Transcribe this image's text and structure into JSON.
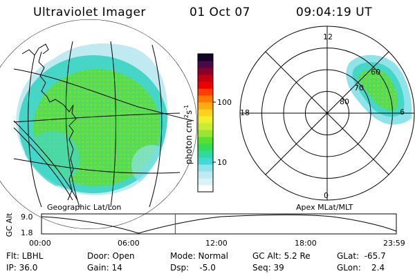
{
  "header": {
    "title": "Ultraviolet Imager",
    "date": "01 Oct 07",
    "time": "09:04:19 UT"
  },
  "left_panel": {
    "caption": "Geographic Lat/Lon"
  },
  "right_panel": {
    "caption": "Apex MLat/MLT",
    "mlt_labels": {
      "top": "12",
      "left": "18",
      "right": "6",
      "bottom": "0"
    },
    "lat_labels": [
      "60",
      "70",
      "80"
    ]
  },
  "colorbar": {
    "axis_label": "photon cm",
    "axis_label_exp1": "-2",
    "axis_label_s": "s",
    "axis_label_exp2": "-1",
    "tick_labels": [
      "100",
      "10"
    ],
    "colors": [
      "#ffffff",
      "#d9f2f7",
      "#bfeaf2",
      "#8fe3ea",
      "#45d6d6",
      "#2fd99f",
      "#33dd55",
      "#55e033",
      "#99e633",
      "#c8ee33",
      "#eef02e",
      "#ffd21f",
      "#ffaa10",
      "#ff7a00",
      "#ff3d00",
      "#ee0000",
      "#c00010",
      "#8a0028",
      "#4a0a4a",
      "#140528"
    ]
  },
  "altitude_plot": {
    "y_axis_label": "GC Alt",
    "y_ticks": [
      "9.0",
      "1.8"
    ],
    "x_ticks": [
      "00:00",
      "06:00",
      "12:00",
      "18:00",
      "23:59"
    ],
    "current_time_fraction": 0.377
  },
  "info": {
    "flt": "Flt: LBHL",
    "ip": "IP: 36.0",
    "door": "Door: Open",
    "gain": "Gain: 14",
    "mode": "Mode: Normal",
    "dsp": "Dsp:    -5.0",
    "gc_alt": "GC Alt: 5.2 Re",
    "seq": "Seq: 39",
    "glat": "GLat:  -65.7",
    "glon": "GLon:    2.4"
  }
}
